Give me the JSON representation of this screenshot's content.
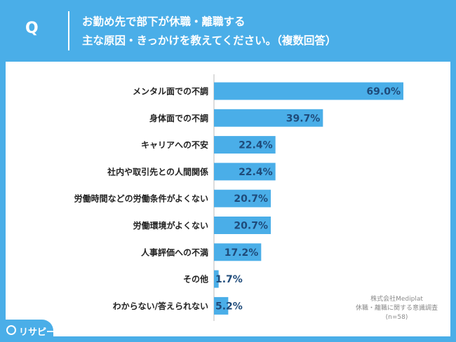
{
  "question": {
    "mark": "Q",
    "line1": "お勤め先で部下が休職・離職する",
    "line2": "主な原因・きっかけを教えてください。（複数回答）"
  },
  "source": {
    "company": "株式会社Mediplat",
    "survey": "休職・離職に関する意識調査",
    "n": "(n=58)"
  },
  "logo": {
    "text": "リサピー"
  },
  "colors": {
    "background": "#4aaee8",
    "bar": "#4aaee8",
    "label": "#222222",
    "value": "#1f4b7a"
  },
  "chart_data": {
    "type": "bar",
    "orientation": "horizontal",
    "categories": [
      "メンタル面での不調",
      "身体面での不調",
      "キャリアへの不安",
      "社内や取引先との人間関係",
      "労働時間などの労働条件がよくない",
      "労働環境がよくない",
      "人事評価への不満",
      "その他",
      "わからない/答えられない"
    ],
    "values": [
      69.0,
      39.7,
      22.4,
      22.4,
      20.7,
      20.7,
      17.2,
      1.7,
      5.2
    ],
    "value_labels": [
      "69.0%",
      "39.7%",
      "22.4%",
      "22.4%",
      "20.7%",
      "20.7%",
      "17.2%",
      "1.7%",
      "5.2%"
    ],
    "xlim": [
      0,
      80
    ],
    "grid": false
  }
}
